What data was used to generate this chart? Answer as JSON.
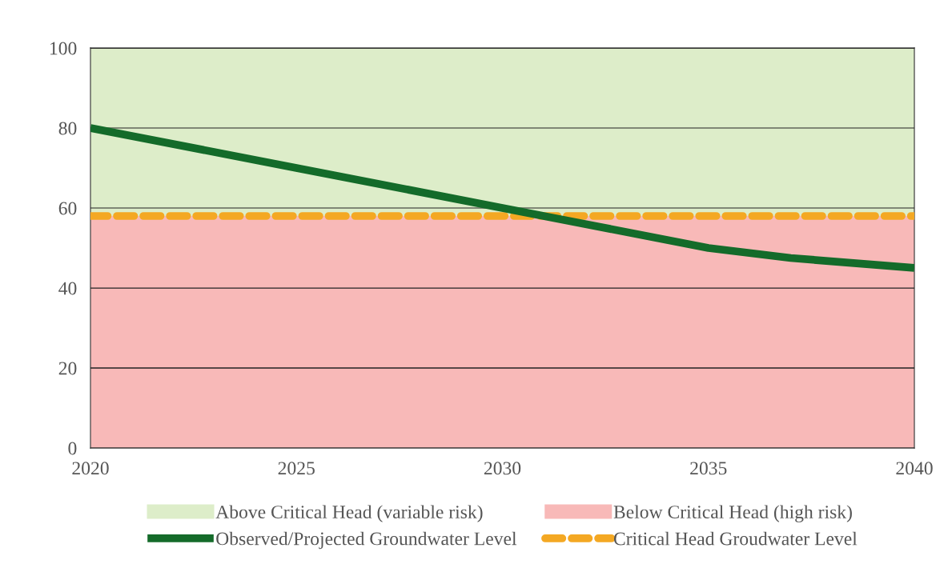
{
  "chart_data": {
    "type": "line",
    "x": [
      2020,
      2025,
      2030,
      2032,
      2035,
      2037,
      2040
    ],
    "series": [
      {
        "name": "Observed/Projected Groundwater Level",
        "color": "#146b2a",
        "values": [
          80,
          70,
          60,
          56,
          50,
          47.5,
          45
        ]
      }
    ],
    "xlim": [
      2020,
      2040
    ],
    "xticks": [
      2020,
      2025,
      2030,
      2035,
      2040
    ],
    "ylim": [
      0,
      100
    ],
    "yticks": [
      0,
      20,
      40,
      60,
      80,
      100
    ],
    "bands": [
      {
        "axis": "y",
        "from": 58,
        "to": 100,
        "label": "Above Critical Head (variable risk)",
        "color": "#ddedc9"
      },
      {
        "axis": "y",
        "from": 0,
        "to": 58,
        "label": "Below Critical Head (high risk)",
        "color": "#f8b9b8"
      }
    ],
    "ref_lines": [
      {
        "axis": "y",
        "value": 58,
        "label": "Critical Head Groudwater Level",
        "color": "#f4a823",
        "line_style": "dashed"
      }
    ],
    "grid": "y",
    "legend": "bottom",
    "line_style": "solid",
    "marker": "none"
  }
}
